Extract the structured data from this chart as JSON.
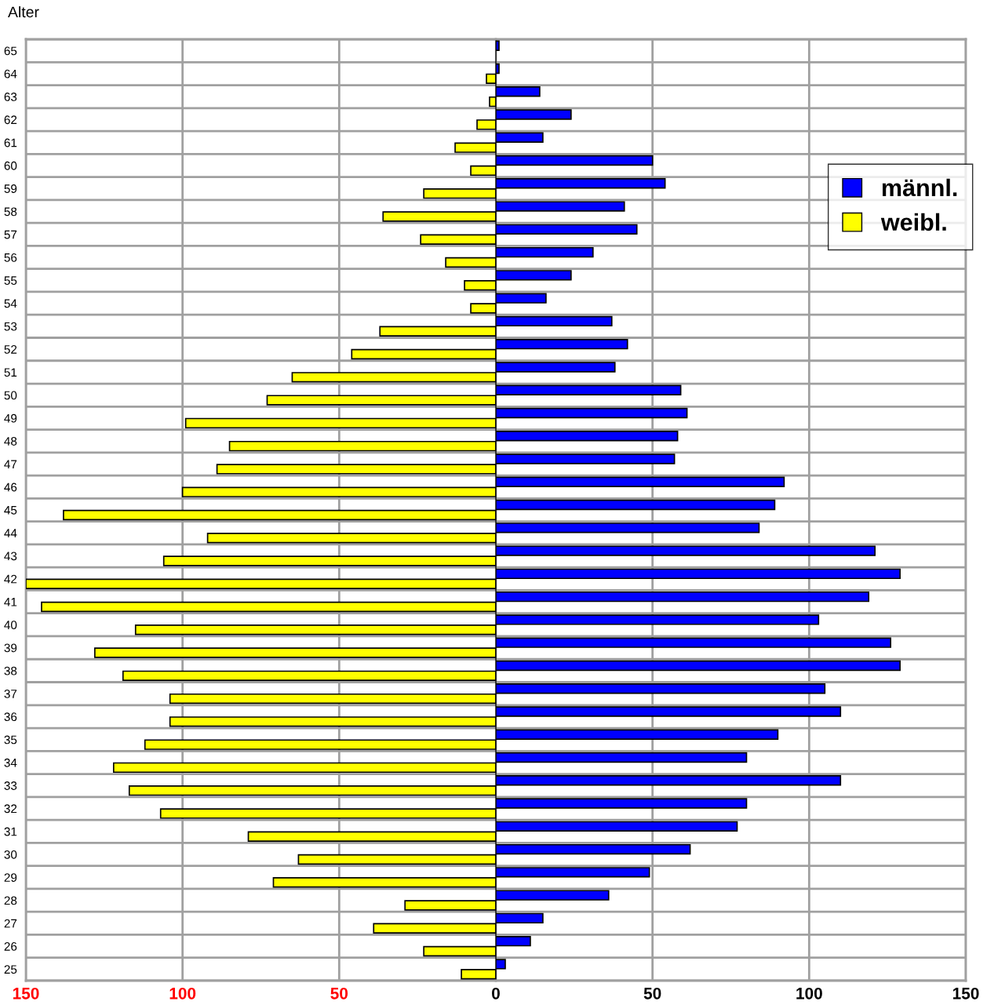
{
  "chart_data": [
    {
      "type": "bar",
      "orientation": "horizontal",
      "ylabel": "Alter",
      "categories": [
        "65",
        "64",
        "63",
        "62",
        "61",
        "60",
        "59",
        "58",
        "57",
        "56",
        "55",
        "54",
        "53",
        "52",
        "51",
        "50",
        "49",
        "48",
        "47",
        "46",
        "45",
        "44",
        "43",
        "42",
        "41",
        "40",
        "39",
        "38",
        "37",
        "36",
        "35",
        "34",
        "33",
        "32",
        "31",
        "30",
        "29",
        "28",
        "27",
        "26",
        "25"
      ],
      "series": [
        {
          "name": "weibl.",
          "color": "#ffff00",
          "values": [
            null,
            3,
            2,
            6,
            13,
            8,
            23,
            36,
            24,
            16,
            10,
            8,
            37,
            46,
            65,
            73,
            99,
            85,
            89,
            100,
            138,
            92,
            106,
            150,
            145,
            115,
            128,
            119,
            104,
            104,
            112,
            122,
            117,
            107,
            79,
            63,
            71,
            29,
            39,
            23,
            11
          ]
        }
      ],
      "xlim": [
        150,
        0
      ],
      "xticks": [
        150,
        100,
        50
      ],
      "grid": true
    },
    {
      "type": "bar",
      "orientation": "horizontal",
      "categories": [
        "65",
        "64",
        "63",
        "62",
        "61",
        "60",
        "59",
        "58",
        "57",
        "56",
        "55",
        "54",
        "53",
        "52",
        "51",
        "50",
        "49",
        "48",
        "47",
        "46",
        "45",
        "44",
        "43",
        "42",
        "41",
        "40",
        "39",
        "38",
        "37",
        "36",
        "35",
        "34",
        "33",
        "32",
        "31",
        "30",
        "29",
        "28",
        "27",
        "26",
        "25"
      ],
      "series": [
        {
          "name": "männl.",
          "color": "#0000ff",
          "values": [
            1,
            1,
            14,
            24,
            15,
            50,
            54,
            41,
            45,
            31,
            24,
            16,
            37,
            42,
            38,
            59,
            61,
            58,
            57,
            92,
            89,
            84,
            121,
            129,
            119,
            103,
            126,
            129,
            105,
            110,
            90,
            80,
            110,
            80,
            77,
            62,
            49,
            36,
            15,
            11,
            3
          ]
        }
      ],
      "xlim": [
        0,
        150
      ],
      "xticks": [
        0,
        50,
        100,
        150
      ],
      "grid": true,
      "legend": "top right",
      "tick_labels": "x"
    }
  ]
}
